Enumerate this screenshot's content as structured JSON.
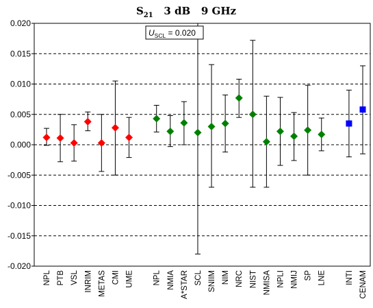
{
  "chart_data": {
    "type": "scatter",
    "title": {
      "main": "S",
      "sub": "21",
      "rest": "   3 dB   9 GHz"
    },
    "annotation": {
      "symbol": "U",
      "subscript": "SCL",
      "value_text": " = 0.020"
    },
    "ylim": [
      -0.02,
      0.02
    ],
    "ytick_labels": [
      "0.020",
      "0.015",
      "0.010",
      "0.005",
      "0.000",
      "-0.005",
      "-0.010",
      "-0.015",
      "-0.020"
    ],
    "ytick_values": [
      0.02,
      0.015,
      0.01,
      0.005,
      0.0,
      -0.005,
      -0.01,
      -0.015,
      -0.02
    ],
    "grid": "horizontal-dashed",
    "categories": [
      "NPL",
      "PTB",
      "VSL",
      "INRIM",
      "METAS",
      "CMI",
      "UME",
      "",
      "NPL",
      "NMIA",
      "A*STAR",
      "SCL",
      "SNIIM",
      "NIM",
      "NRC",
      "NIST",
      "NMISA",
      "NPLI",
      "NMIJ",
      "SP",
      "LNE",
      "",
      "INTI",
      "CENAM"
    ],
    "series": [
      {
        "color": "#ff0000",
        "marker": "diamond",
        "points": [
          {
            "category": "NPL",
            "y": 0.0012,
            "lo": -0.0001,
            "hi": 0.0027
          },
          {
            "category": "PTB",
            "y": 0.0011,
            "lo": -0.0028,
            "hi": 0.005
          },
          {
            "category": "VSL",
            "y": 0.0003,
            "lo": -0.0027,
            "hi": 0.0033
          },
          {
            "category": "INRIM",
            "y": 0.0038,
            "lo": 0.0023,
            "hi": 0.0054
          },
          {
            "category": "METAS",
            "y": 0.0003,
            "lo": -0.0044,
            "hi": 0.005
          },
          {
            "category": "CMI",
            "y": 0.0028,
            "lo": -0.005,
            "hi": 0.0105
          },
          {
            "category": "UME",
            "y": 0.0012,
            "lo": -0.0021,
            "hi": 0.0045
          }
        ]
      },
      {
        "color": "#008000",
        "marker": "diamond",
        "points": [
          {
            "category": "NPL",
            "y": 0.0043,
            "lo": 0.0021,
            "hi": 0.0065
          },
          {
            "category": "NMIA",
            "y": 0.0022,
            "lo": -0.0003,
            "hi": 0.0048
          },
          {
            "category": "A*STAR",
            "y": 0.0036,
            "lo": 0.0,
            "hi": 0.0071
          },
          {
            "category": "SCL",
            "y": 0.002,
            "lo": -0.018,
            "hi": 0.022
          },
          {
            "category": "SNIIM",
            "y": 0.003,
            "lo": -0.007,
            "hi": 0.0132
          },
          {
            "category": "NIM",
            "y": 0.0035,
            "lo": -0.0012,
            "hi": 0.0082
          },
          {
            "category": "NRC",
            "y": 0.0077,
            "lo": 0.0045,
            "hi": 0.0108
          },
          {
            "category": "NIST",
            "y": 0.005,
            "lo": -0.007,
            "hi": 0.0172
          },
          {
            "category": "NMISA",
            "y": 0.0005,
            "lo": -0.007,
            "hi": 0.008
          },
          {
            "category": "NPLI",
            "y": 0.0022,
            "lo": -0.0034,
            "hi": 0.0078
          },
          {
            "category": "NMIJ",
            "y": 0.0014,
            "lo": -0.0026,
            "hi": 0.0053
          },
          {
            "category": "SP",
            "y": 0.0024,
            "lo": -0.005,
            "hi": 0.0098
          },
          {
            "category": "LNE",
            "y": 0.0017,
            "lo": -0.001,
            "hi": 0.0044
          }
        ]
      },
      {
        "color": "#0000ff",
        "marker": "square",
        "points": [
          {
            "category": "INTI",
            "y": 0.0035,
            "lo": -0.002,
            "hi": 0.009
          },
          {
            "category": "CENAM",
            "y": 0.0058,
            "lo": -0.0015,
            "hi": 0.013
          }
        ]
      }
    ]
  }
}
